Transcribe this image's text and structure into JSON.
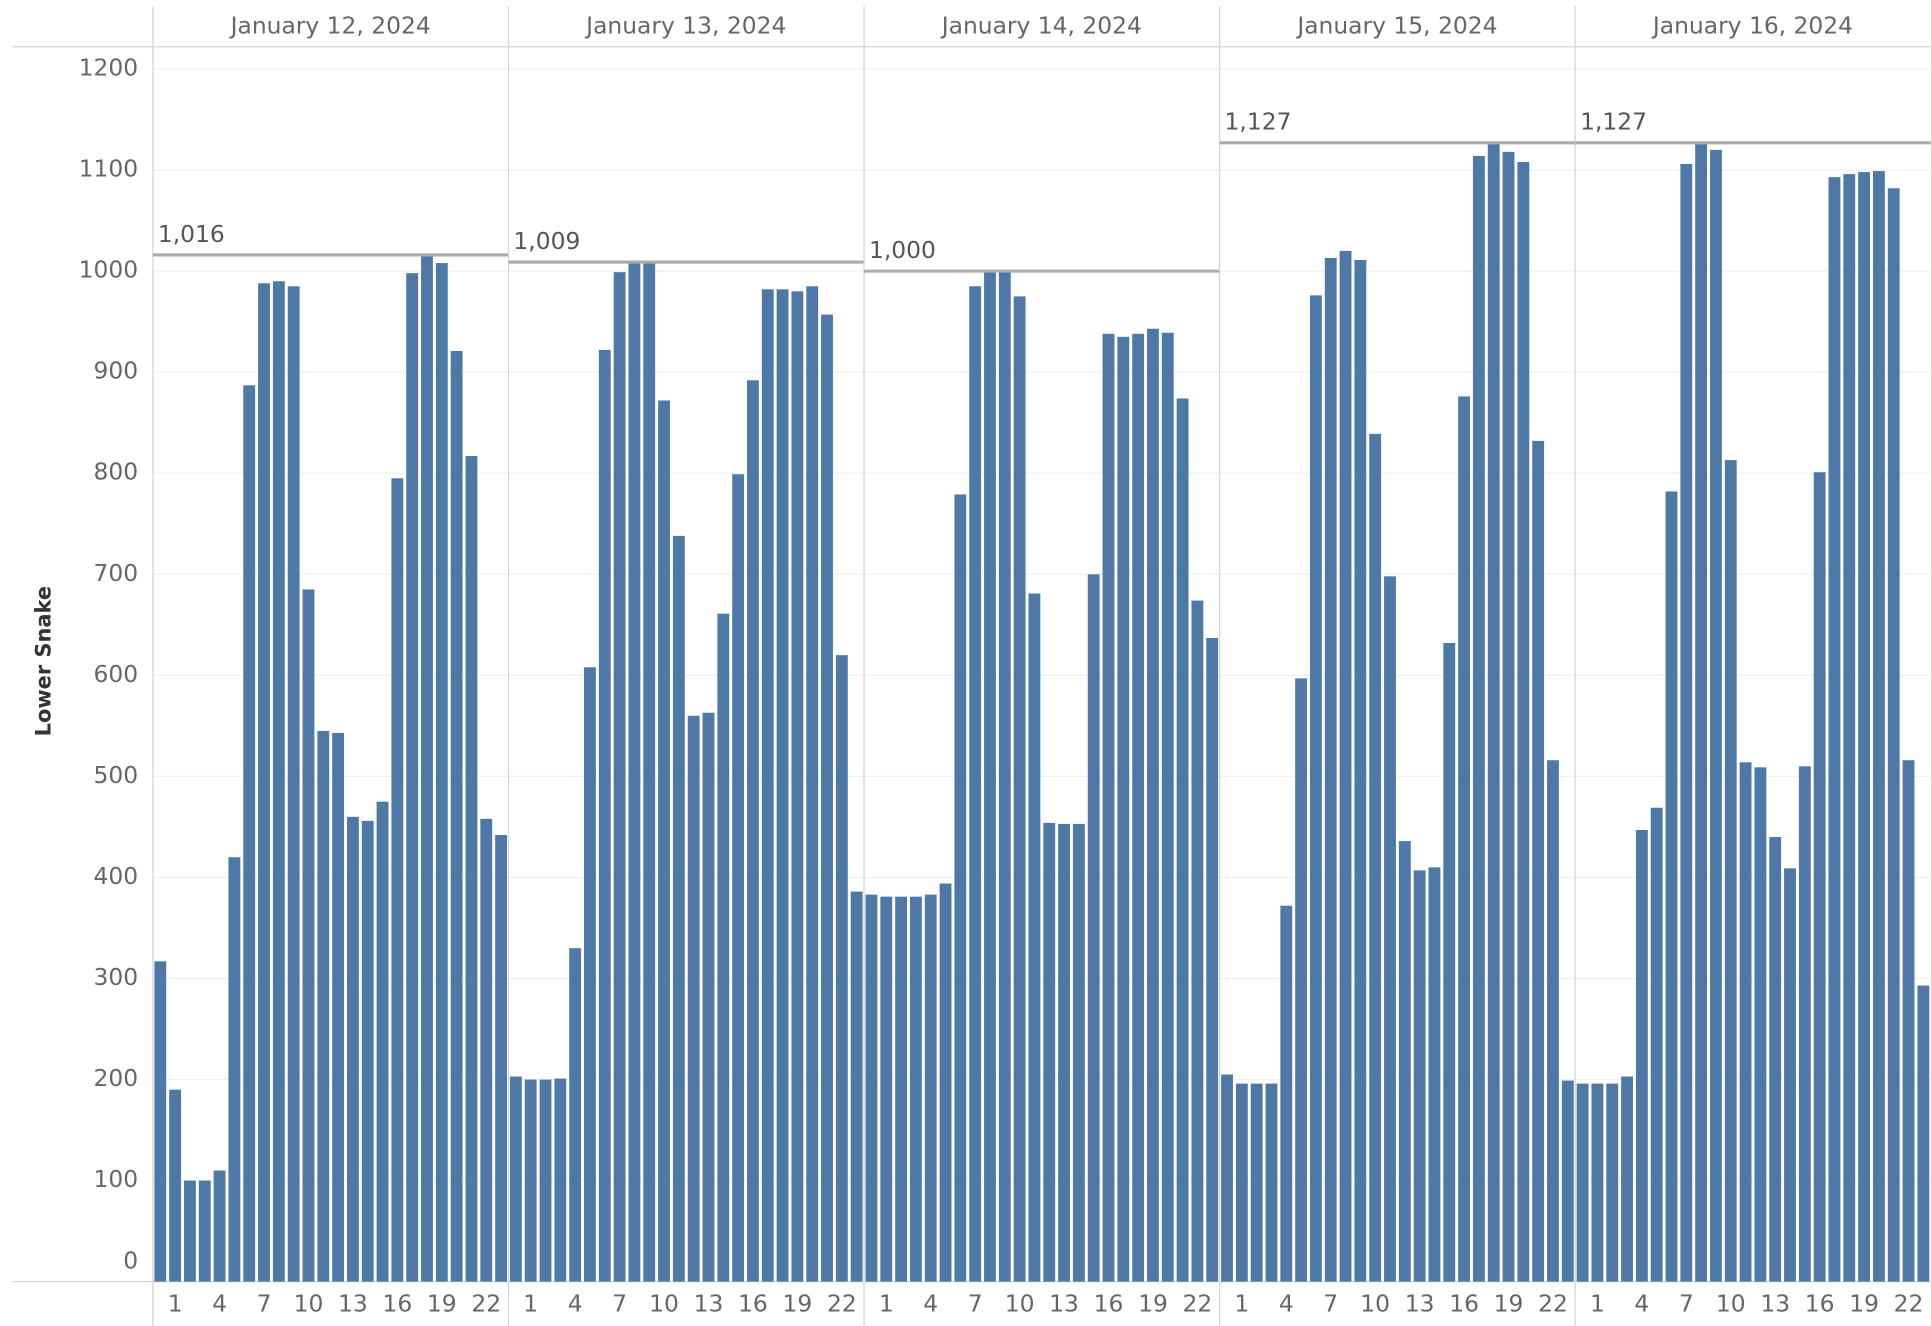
{
  "chart_data": {
    "type": "bar",
    "y_label": "Lower Snake",
    "categories": [
      null,
      "1",
      null,
      null,
      "4",
      null,
      null,
      "7",
      null,
      null,
      "10",
      null,
      null,
      "13",
      null,
      null,
      "16",
      null,
      null,
      "19",
      null,
      null,
      "22",
      null
    ],
    "series": [
      {
        "name": "January 12, 2024",
        "color": "#4e79a7",
        "values": [
          317,
          190,
          100,
          100,
          110,
          420,
          887,
          988,
          990,
          985,
          685,
          545,
          543,
          460,
          456,
          475,
          795,
          998,
          1016,
          1008,
          921,
          817,
          458,
          442
        ]
      },
      {
        "name": "January 13, 2024",
        "color": "#4e79a7",
        "values": [
          203,
          200,
          200,
          201,
          330,
          608,
          922,
          999,
          1009,
          1009,
          872,
          738,
          560,
          563,
          661,
          799,
          892,
          982,
          982,
          980,
          985,
          957,
          620,
          386
        ]
      },
      {
        "name": "January 14, 2024",
        "color": "#4e79a7",
        "values": [
          383,
          381,
          381,
          381,
          383,
          394,
          779,
          985,
          1000,
          1000,
          975,
          681,
          454,
          453,
          453,
          700,
          938,
          935,
          938,
          943,
          939,
          874,
          674,
          637
        ]
      },
      {
        "name": "January 15, 2024",
        "color": "#4e79a7",
        "values": [
          205,
          196,
          196,
          196,
          372,
          597,
          976,
          1013,
          1020,
          1011,
          839,
          698,
          436,
          407,
          410,
          632,
          876,
          1114,
          1127,
          1118,
          1108,
          832,
          516,
          199
        ]
      },
      {
        "name": "January 16, 2024",
        "color": "#4e79a7",
        "values": [
          196,
          196,
          196,
          203,
          447,
          469,
          782,
          1106,
          1127,
          1120,
          813,
          514,
          509,
          440,
          409,
          510,
          801,
          1093,
          1096,
          1098,
          1099,
          1082,
          516,
          293
        ]
      }
    ],
    "reference_lines": [
      {
        "value": 1016,
        "label": "1,016"
      },
      {
        "value": 1009,
        "label": "1,009"
      },
      {
        "value": 1000,
        "label": "1,000"
      },
      {
        "value": 1127,
        "label": "1,127"
      },
      {
        "value": 1127,
        "label": "1,127"
      }
    ],
    "ylim": [
      0,
      1222
    ],
    "yticks": [
      0,
      100,
      200,
      300,
      400,
      500,
      600,
      700,
      800,
      900,
      1000,
      1100,
      1200
    ],
    "grid": true
  }
}
